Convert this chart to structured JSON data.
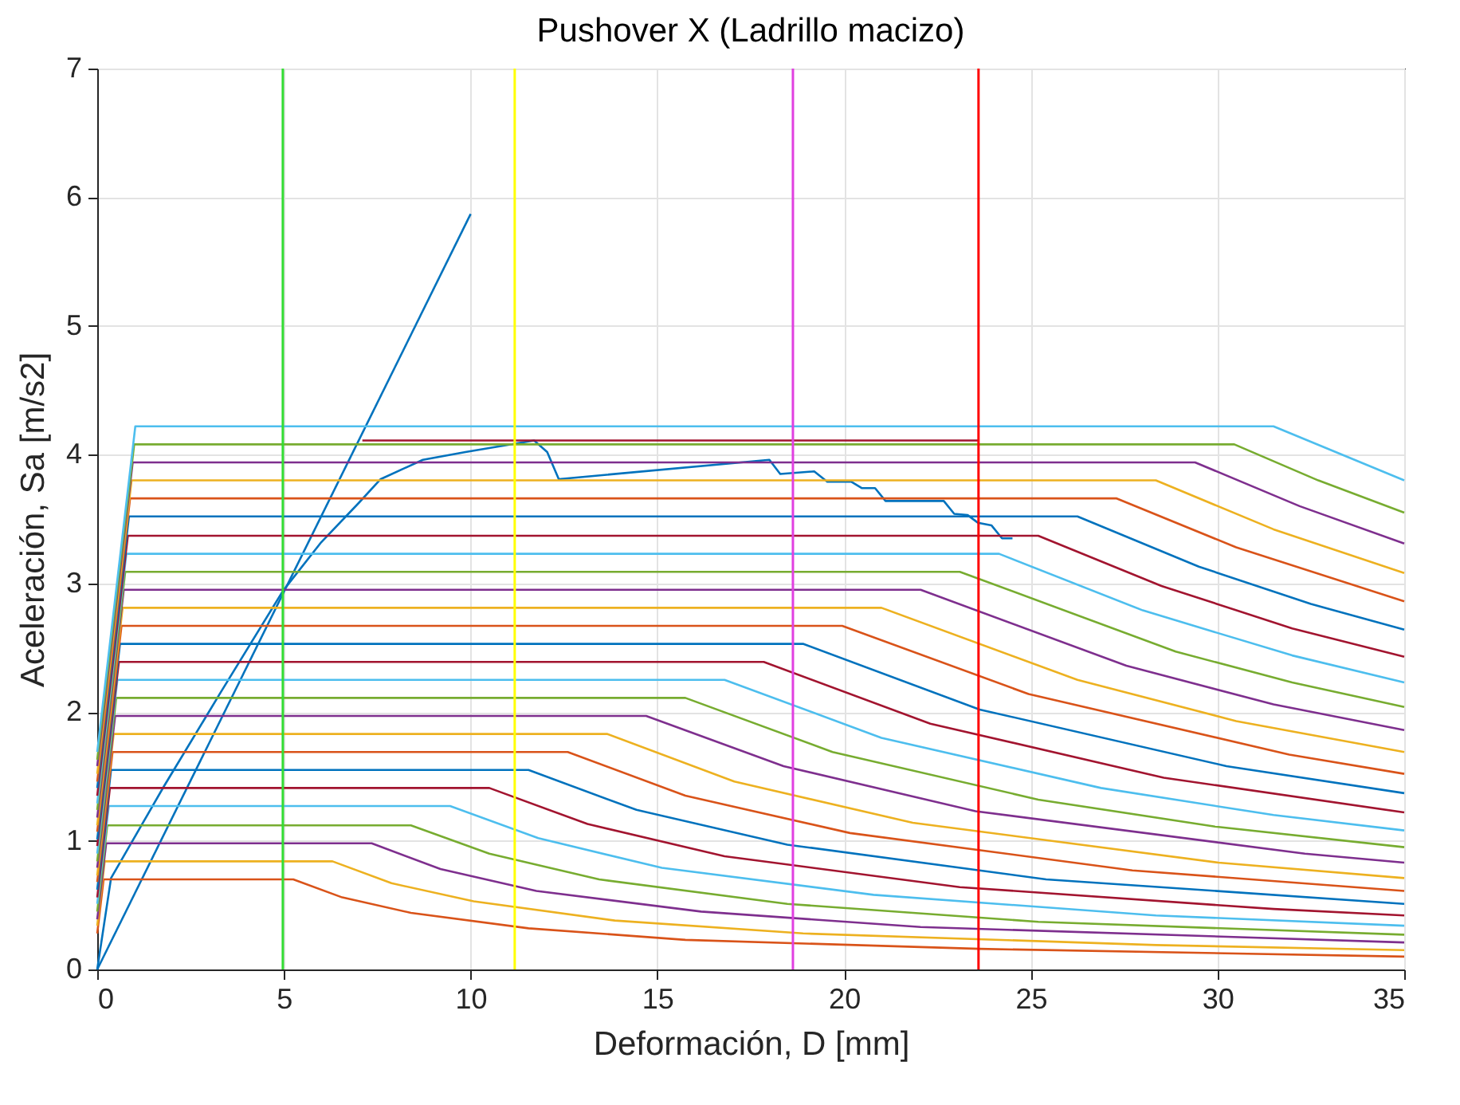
{
  "chart_data": {
    "type": "line",
    "title": "Pushover X (Ladrillo macizo)",
    "xlabel": "Deformación, D [mm]",
    "ylabel": "Aceleración, Sa [m/s2]",
    "xlim": [
      0,
      35
    ],
    "xticks": [
      0,
      5,
      10,
      15,
      20,
      25,
      30,
      35
    ],
    "ylim": [
      0,
      7
    ],
    "yticks": [
      0,
      1,
      2,
      3,
      4,
      5,
      6,
      7
    ],
    "grid": true,
    "legend": false,
    "series": [
      {
        "color": "#0072bd",
        "x": [
          0,
          0.37,
          1.78,
          3.3,
          4.97,
          6.0,
          7.02,
          7.59,
          8.72,
          9.86,
          11.7,
          12.05,
          12.36,
          18.0,
          18.29,
          19.2,
          19.55,
          20.19,
          20.48,
          20.83,
          21.11,
          22.67,
          22.95,
          23.31,
          23.59,
          23.95,
          24.23,
          24.51
        ],
        "values": [
          0,
          0.71,
          1.42,
          2.15,
          2.94,
          3.32,
          3.63,
          3.81,
          3.96,
          4.02,
          4.11,
          4.02,
          3.81,
          3.96,
          3.85,
          3.87,
          3.79,
          3.79,
          3.74,
          3.74,
          3.64,
          3.64,
          3.54,
          3.53,
          3.47,
          3.45,
          3.35,
          3.35
        ]
      },
      {
        "color": "#0072bd",
        "x": [
          0,
          10
        ],
        "values": [
          0,
          5.87
        ]
      },
      {
        "color": "#a2142f",
        "x": [
          7.1,
          23.6
        ],
        "values": [
          4.11,
          4.11
        ]
      },
      {
        "color": "#d95319",
        "x": [
          0,
          0.17,
          5.25,
          6.56,
          8.4,
          11.55,
          15.75,
          23.63,
          35
        ],
        "values": [
          0.28,
          0.7,
          0.7,
          0.56,
          0.44,
          0.32,
          0.23,
          0.16,
          0.1
        ]
      },
      {
        "color": "#edb120",
        "x": [
          0,
          0.2,
          6.3,
          7.88,
          10.08,
          13.86,
          18.9,
          28.35,
          35
        ],
        "values": [
          0.34,
          0.84,
          0.84,
          0.67,
          0.53,
          0.38,
          0.28,
          0.19,
          0.15
        ]
      },
      {
        "color": "#7e2f8e",
        "x": [
          0,
          0.24,
          7.35,
          9.19,
          11.76,
          16.17,
          22.05,
          35
        ],
        "values": [
          0.39,
          0.98,
          0.98,
          0.78,
          0.61,
          0.45,
          0.33,
          0.21
        ]
      },
      {
        "color": "#77ac30",
        "x": [
          0,
          0.27,
          8.4,
          10.5,
          13.44,
          18.48,
          25.2,
          35
        ],
        "values": [
          0.45,
          1.12,
          1.12,
          0.9,
          0.7,
          0.51,
          0.37,
          0.27
        ]
      },
      {
        "color": "#4dbeee",
        "x": [
          0,
          0.31,
          9.45,
          11.81,
          15.12,
          20.79,
          28.35,
          35
        ],
        "values": [
          0.51,
          1.27,
          1.27,
          1.02,
          0.79,
          0.58,
          0.42,
          0.34
        ]
      },
      {
        "color": "#a2142f",
        "x": [
          0,
          0.34,
          10.5,
          13.13,
          16.8,
          23.1,
          31.5,
          35
        ],
        "values": [
          0.56,
          1.41,
          1.41,
          1.13,
          0.88,
          0.64,
          0.47,
          0.42
        ]
      },
      {
        "color": "#0072bd",
        "x": [
          0,
          0.37,
          11.55,
          14.44,
          18.48,
          25.41,
          35
        ],
        "values": [
          0.62,
          1.55,
          1.55,
          1.24,
          0.97,
          0.7,
          0.51
        ]
      },
      {
        "color": "#d95319",
        "x": [
          0,
          0.41,
          12.6,
          15.75,
          20.16,
          27.72,
          35
        ],
        "values": [
          0.68,
          1.69,
          1.69,
          1.35,
          1.06,
          0.77,
          0.61
        ]
      },
      {
        "color": "#edb120",
        "x": [
          0,
          0.44,
          13.65,
          17.06,
          21.84,
          30.03,
          35
        ],
        "values": [
          0.73,
          1.83,
          1.83,
          1.46,
          1.14,
          0.83,
          0.71
        ]
      },
      {
        "color": "#7e2f8e",
        "x": [
          0,
          0.48,
          14.7,
          18.38,
          23.52,
          32.34,
          35
        ],
        "values": [
          0.79,
          1.97,
          1.97,
          1.58,
          1.23,
          0.9,
          0.83
        ]
      },
      {
        "color": "#77ac30",
        "x": [
          0,
          0.51,
          15.75,
          19.69,
          25.2,
          29.93,
          35
        ],
        "values": [
          0.84,
          2.11,
          2.11,
          1.69,
          1.32,
          1.11,
          0.95
        ]
      },
      {
        "color": "#4dbeee",
        "x": [
          0,
          0.54,
          16.8,
          21,
          26.88,
          31.5,
          35
        ],
        "values": [
          0.9,
          2.25,
          2.25,
          1.8,
          1.41,
          1.2,
          1.08
        ]
      },
      {
        "color": "#a2142f",
        "x": [
          0,
          0.58,
          17.85,
          22.31,
          28.56,
          35
        ],
        "values": [
          0.96,
          2.39,
          2.39,
          1.91,
          1.49,
          1.22
        ]
      },
      {
        "color": "#0072bd",
        "x": [
          0,
          0.61,
          18.9,
          23.63,
          30.24,
          35
        ],
        "values": [
          1.01,
          2.53,
          2.53,
          2.02,
          1.58,
          1.37
        ]
      },
      {
        "color": "#d95319",
        "x": [
          0,
          0.65,
          19.95,
          24.94,
          31.92,
          35
        ],
        "values": [
          1.07,
          2.67,
          2.67,
          2.14,
          1.67,
          1.52
        ]
      },
      {
        "color": "#edb120",
        "x": [
          0,
          0.68,
          21,
          26.25,
          30.5,
          35
        ],
        "values": [
          1.12,
          2.81,
          2.81,
          2.25,
          1.93,
          1.69
        ]
      },
      {
        "color": "#7e2f8e",
        "x": [
          0,
          0.71,
          22.05,
          27.56,
          31.5,
          35
        ],
        "values": [
          1.18,
          2.95,
          2.95,
          2.36,
          2.06,
          1.86
        ]
      },
      {
        "color": "#77ac30",
        "x": [
          0,
          0.75,
          23.1,
          28.88,
          32,
          35
        ],
        "values": [
          1.24,
          3.09,
          3.09,
          2.47,
          2.23,
          2.04
        ]
      },
      {
        "color": "#4dbeee",
        "x": [
          0,
          0.78,
          24.15,
          28,
          32,
          35
        ],
        "values": [
          1.29,
          3.23,
          3.23,
          2.79,
          2.44,
          2.23
        ]
      },
      {
        "color": "#a2142f",
        "x": [
          0,
          0.82,
          25.2,
          28.5,
          32,
          35
        ],
        "values": [
          1.35,
          3.37,
          3.37,
          2.98,
          2.65,
          2.43
        ]
      },
      {
        "color": "#0072bd",
        "x": [
          0,
          0.85,
          26.25,
          29.5,
          32.5,
          35
        ],
        "values": [
          1.41,
          3.52,
          3.52,
          3.13,
          2.84,
          2.64
        ]
      },
      {
        "color": "#d95319",
        "x": [
          0,
          0.88,
          27.3,
          30.5,
          35
        ],
        "values": [
          1.46,
          3.66,
          3.66,
          3.28,
          2.86
        ]
      },
      {
        "color": "#edb120",
        "x": [
          0,
          0.92,
          28.35,
          31.5,
          35
        ],
        "values": [
          1.52,
          3.8,
          3.8,
          3.42,
          3.08
        ]
      },
      {
        "color": "#7e2f8e",
        "x": [
          0,
          0.95,
          29.4,
          32.2,
          35
        ],
        "values": [
          1.58,
          3.94,
          3.94,
          3.6,
          3.31
        ]
      },
      {
        "color": "#77ac30",
        "x": [
          0,
          0.99,
          30.45,
          32.7,
          35
        ],
        "values": [
          1.63,
          4.08,
          4.08,
          3.8,
          3.55
        ]
      },
      {
        "color": "#4dbeee",
        "x": [
          0,
          1.02,
          31.5,
          35
        ],
        "values": [
          1.69,
          4.22,
          4.22,
          3.8
        ]
      }
    ],
    "ref_lines": [
      {
        "axis": "x",
        "value": 4.97,
        "color": "#33dd33"
      },
      {
        "axis": "x",
        "value": 11.18,
        "color": "#ffff00"
      },
      {
        "axis": "x",
        "value": 18.63,
        "color": "#e040e0"
      },
      {
        "axis": "x",
        "value": 23.6,
        "color": "#ff0000"
      }
    ]
  }
}
